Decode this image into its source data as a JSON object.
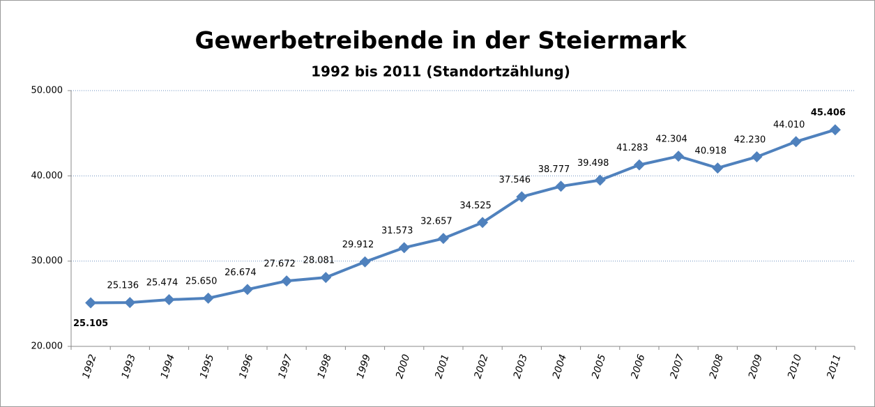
{
  "chart_data": {
    "type": "line",
    "title": "Gewerbetreibende in der Steiermark",
    "subtitle": "1992 bis 2011 (Standortzählung)",
    "categories": [
      "1992",
      "1993",
      "1994",
      "1995",
      "1996",
      "1997",
      "1998",
      "1999",
      "2000",
      "2001",
      "2002",
      "2003",
      "2004",
      "2005",
      "2006",
      "2007",
      "2008",
      "2009",
      "2010",
      "2011"
    ],
    "values": [
      25105,
      25136,
      25474,
      25650,
      26674,
      27672,
      28081,
      29912,
      31573,
      32657,
      34525,
      37546,
      38777,
      39498,
      41283,
      42304,
      40918,
      42230,
      44010,
      45406
    ],
    "value_labels": [
      "25.105",
      "25.136",
      "25.474",
      "25.650",
      "26.674",
      "27.672",
      "28.081",
      "29.912",
      "31.573",
      "32.657",
      "34.525",
      "37.546",
      "38.777",
      "39.498",
      "41.283",
      "42.304",
      "40.918",
      "42.230",
      "44.010",
      "45.406"
    ],
    "color": "#4f81bd",
    "ylim": [
      20000,
      50000
    ],
    "yticks": [
      {
        "value": 20000,
        "label": "20.000"
      },
      {
        "value": 30000,
        "label": "30.000"
      },
      {
        "value": 40000,
        "label": "40.000"
      },
      {
        "value": 50000,
        "label": "50.000"
      }
    ],
    "grid": true
  }
}
